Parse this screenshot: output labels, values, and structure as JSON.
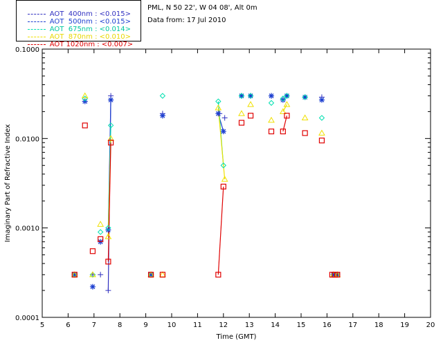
{
  "chart_data": {
    "type": "scatter",
    "ylabel": "Imaginary Part of Refractive Index",
    "xlabel": "Time (GMT)",
    "xlim": [
      5,
      20
    ],
    "ylim": [
      0.0001,
      0.1
    ],
    "yscale": "log",
    "x_ticks": [
      "5",
      "6",
      "7",
      "8",
      "9",
      "10",
      "11",
      "12",
      "13",
      "14",
      "15",
      "16",
      "17",
      "18",
      "19",
      "20"
    ],
    "y_ticks": [
      "0.0001",
      "0.0010",
      "0.0100",
      "0.1000"
    ],
    "info_lines": [
      "PML, N 50 22', W 04 08', Alt 0m",
      "Data from: 17 Jul 2010"
    ],
    "legend_position": "top-left",
    "series": [
      {
        "name": "AOT  400nm : <0.015>",
        "color": "#3030c0",
        "marker": "plus",
        "points": [
          [
            6.25,
            0.0003
          ],
          [
            6.95,
            0.0003
          ],
          [
            7.25,
            0.0003
          ],
          [
            7.55,
            0.0002
          ],
          [
            7.65,
            0.03
          ],
          [
            9.2,
            0.0003
          ],
          [
            9.65,
            0.019
          ],
          [
            11.85,
            0.019
          ],
          [
            12.05,
            0.017
          ],
          [
            12.7,
            0.03
          ],
          [
            13.05,
            0.03
          ],
          [
            13.85,
            0.03
          ],
          [
            14.3,
            0.027
          ],
          [
            14.45,
            0.03
          ],
          [
            15.15,
            0.029
          ],
          [
            15.8,
            0.029
          ],
          [
            16.25,
            0.0003
          ],
          [
            16.4,
            0.0003
          ]
        ],
        "lines": [
          [
            [
              7.55,
              0.0002
            ],
            [
              7.65,
              0.03
            ]
          ]
        ]
      },
      {
        "name": "AOT  500nm : <0.015>",
        "color": "#1d3fd0",
        "marker": "asterisk",
        "points": [
          [
            6.25,
            0.0003
          ],
          [
            6.65,
            0.026
          ],
          [
            6.95,
            0.00022
          ],
          [
            7.25,
            0.0007
          ],
          [
            7.55,
            0.00095
          ],
          [
            7.65,
            0.027
          ],
          [
            9.2,
            0.0003
          ],
          [
            9.65,
            0.018
          ],
          [
            11.8,
            0.019
          ],
          [
            12.0,
            0.012
          ],
          [
            12.7,
            0.03
          ],
          [
            13.05,
            0.03
          ],
          [
            13.85,
            0.03
          ],
          [
            14.3,
            0.027
          ],
          [
            14.45,
            0.03
          ],
          [
            15.15,
            0.029
          ],
          [
            15.8,
            0.027
          ],
          [
            16.25,
            0.0003
          ],
          [
            16.4,
            0.0003
          ]
        ],
        "lines": [
          [
            [
              7.55,
              0.00095
            ],
            [
              7.65,
              0.027
            ]
          ],
          [
            [
              11.8,
              0.019
            ],
            [
              12.0,
              0.012
            ]
          ]
        ]
      },
      {
        "name": "AOT  675nm : <0.014>",
        "color": "#00e0b0",
        "marker": "diamond",
        "points": [
          [
            6.25,
            0.0003
          ],
          [
            6.65,
            0.028
          ],
          [
            6.95,
            0.0003
          ],
          [
            7.25,
            0.0009
          ],
          [
            7.55,
            0.001
          ],
          [
            7.65,
            0.014
          ],
          [
            9.2,
            0.0003
          ],
          [
            9.65,
            0.03
          ],
          [
            11.8,
            0.026
          ],
          [
            12.0,
            0.005
          ],
          [
            12.7,
            0.03
          ],
          [
            13.05,
            0.03
          ],
          [
            13.85,
            0.025
          ],
          [
            14.3,
            0.028
          ],
          [
            14.45,
            0.03
          ],
          [
            15.15,
            0.029
          ],
          [
            15.8,
            0.017
          ],
          [
            16.25,
            0.0003
          ],
          [
            16.4,
            0.0003
          ]
        ],
        "lines": [
          [
            [
              7.55,
              0.001
            ],
            [
              7.65,
              0.014
            ]
          ],
          [
            [
              11.8,
              0.026
            ],
            [
              12.0,
              0.005
            ]
          ]
        ]
      },
      {
        "name": "AOT  870nm : <0.010>",
        "color": "#f0e000",
        "marker": "triangle",
        "points": [
          [
            6.25,
            0.0003
          ],
          [
            6.65,
            0.03
          ],
          [
            6.95,
            0.0003
          ],
          [
            7.25,
            0.0011
          ],
          [
            7.55,
            0.0008
          ],
          [
            7.65,
            0.01
          ],
          [
            9.2,
            0.0003
          ],
          [
            9.65,
            0.0003
          ],
          [
            11.8,
            0.022
          ],
          [
            12.05,
            0.0035
          ],
          [
            12.7,
            0.019
          ],
          [
            13.05,
            0.024
          ],
          [
            13.85,
            0.016
          ],
          [
            14.3,
            0.02
          ],
          [
            14.45,
            0.024
          ],
          [
            15.15,
            0.017
          ],
          [
            15.8,
            0.0115
          ],
          [
            16.25,
            0.0003
          ],
          [
            16.4,
            0.0003
          ]
        ],
        "lines": [
          [
            [
              7.55,
              0.0008
            ],
            [
              7.65,
              0.01
            ]
          ],
          [
            [
              11.8,
              0.022
            ],
            [
              12.05,
              0.0035
            ]
          ],
          [
            [
              14.3,
              0.02
            ],
            [
              14.45,
              0.024
            ]
          ]
        ]
      },
      {
        "name": "AOT 1020nm : <0.007>",
        "color": "#e00000",
        "marker": "square",
        "points": [
          [
            6.25,
            0.0003
          ],
          [
            6.65,
            0.014
          ],
          [
            6.95,
            0.00055
          ],
          [
            7.25,
            0.00075
          ],
          [
            7.55,
            0.00042
          ],
          [
            7.65,
            0.009
          ],
          [
            9.2,
            0.0003
          ],
          [
            9.65,
            0.0003
          ],
          [
            11.8,
            0.0003
          ],
          [
            12.0,
            0.0029
          ],
          [
            12.7,
            0.015
          ],
          [
            13.05,
            0.018
          ],
          [
            13.85,
            0.012
          ],
          [
            14.3,
            0.012
          ],
          [
            14.45,
            0.018
          ],
          [
            15.15,
            0.0115
          ],
          [
            15.8,
            0.0095
          ],
          [
            16.2,
            0.0003
          ],
          [
            16.3,
            0.0003
          ],
          [
            16.4,
            0.0003
          ]
        ],
        "lines": [
          [
            [
              7.55,
              0.00042
            ],
            [
              7.65,
              0.009
            ]
          ],
          [
            [
              11.8,
              0.0003
            ],
            [
              12.0,
              0.0029
            ]
          ],
          [
            [
              14.3,
              0.012
            ],
            [
              14.45,
              0.018
            ]
          ]
        ]
      }
    ]
  }
}
